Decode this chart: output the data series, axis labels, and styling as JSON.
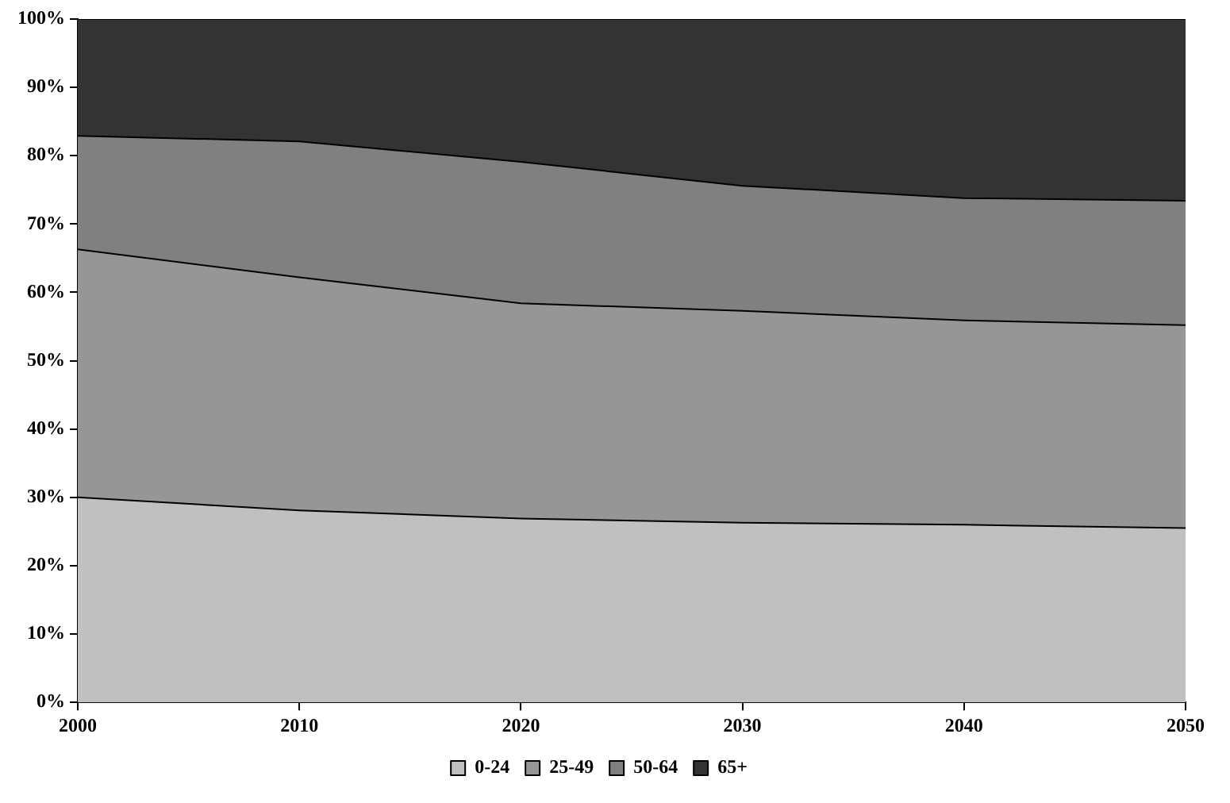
{
  "chart_data": {
    "type": "area",
    "stacked": true,
    "x": [
      2000,
      2010,
      2020,
      2030,
      2040,
      2050
    ],
    "series": [
      {
        "name": "0-24",
        "color": "#c0c0c0",
        "values": [
          30,
          28.1,
          26.9,
          26.3,
          26,
          25.5
        ]
      },
      {
        "name": "25-49",
        "color": "#969696",
        "values": [
          36.3,
          34.1,
          31.5,
          31,
          29.9,
          29.7
        ]
      },
      {
        "name": "50-64",
        "color": "#808080",
        "values": [
          16.6,
          19.9,
          20.7,
          18.3,
          17.9,
          18.2
        ]
      },
      {
        "name": "65+",
        "color": "#333333",
        "values": [
          17.1,
          17.9,
          20.9,
          24.4,
          26.2,
          26.6
        ]
      }
    ],
    "xlim": [
      2000,
      2050
    ],
    "xticks": [
      2000,
      2010,
      2020,
      2030,
      2040,
      2050
    ],
    "ylim": [
      0,
      100
    ],
    "yticks": [
      {
        "value": 0,
        "label": "0%"
      },
      {
        "value": 10,
        "label": "10%"
      },
      {
        "value": 20,
        "label": "20%"
      },
      {
        "value": 30,
        "label": "30%"
      },
      {
        "value": 40,
        "label": "40%"
      },
      {
        "value": 50,
        "label": "50%"
      },
      {
        "value": 60,
        "label": "60%"
      },
      {
        "value": 70,
        "label": "70%"
      },
      {
        "value": 80,
        "label": "80%"
      },
      {
        "value": 90,
        "label": "90%"
      },
      {
        "value": 100,
        "label": "100%"
      }
    ],
    "grid": false,
    "legend": "bottom"
  }
}
